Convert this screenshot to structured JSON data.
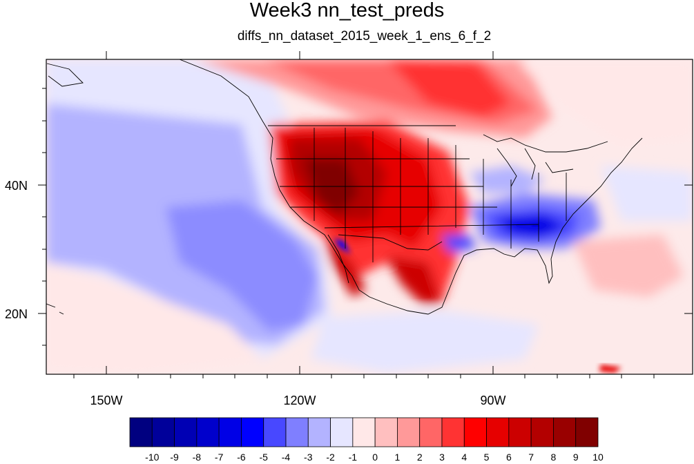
{
  "title": "Week3 nn_test_preds",
  "subtitle": "diffs_nn_dataset_2015_week_1_ens_6_f_2",
  "map": {
    "lon_labels": [
      "150W",
      "120W",
      "90W"
    ],
    "lat_labels": [
      "40N",
      "20N"
    ]
  },
  "colorbar": {
    "labels": [
      "-10",
      "-9",
      "-8",
      "-7",
      "-6",
      "-5",
      "-4",
      "-3",
      "-2",
      "-1",
      "0",
      "1",
      "2",
      "3",
      "4",
      "5",
      "6",
      "7",
      "8",
      "9",
      "10"
    ],
    "colors": [
      "#000080",
      "#00009a",
      "#0000b4",
      "#0000cc",
      "#0000e6",
      "#0000ff",
      "#4848ff",
      "#7f7fff",
      "#b3b3ff",
      "#e6e6ff",
      "#ffe8e8",
      "#ffbfbf",
      "#ff9999",
      "#ff6666",
      "#ff3333",
      "#ff0000",
      "#e60000",
      "#cc0000",
      "#b30000",
      "#990000",
      "#800000"
    ]
  }
}
